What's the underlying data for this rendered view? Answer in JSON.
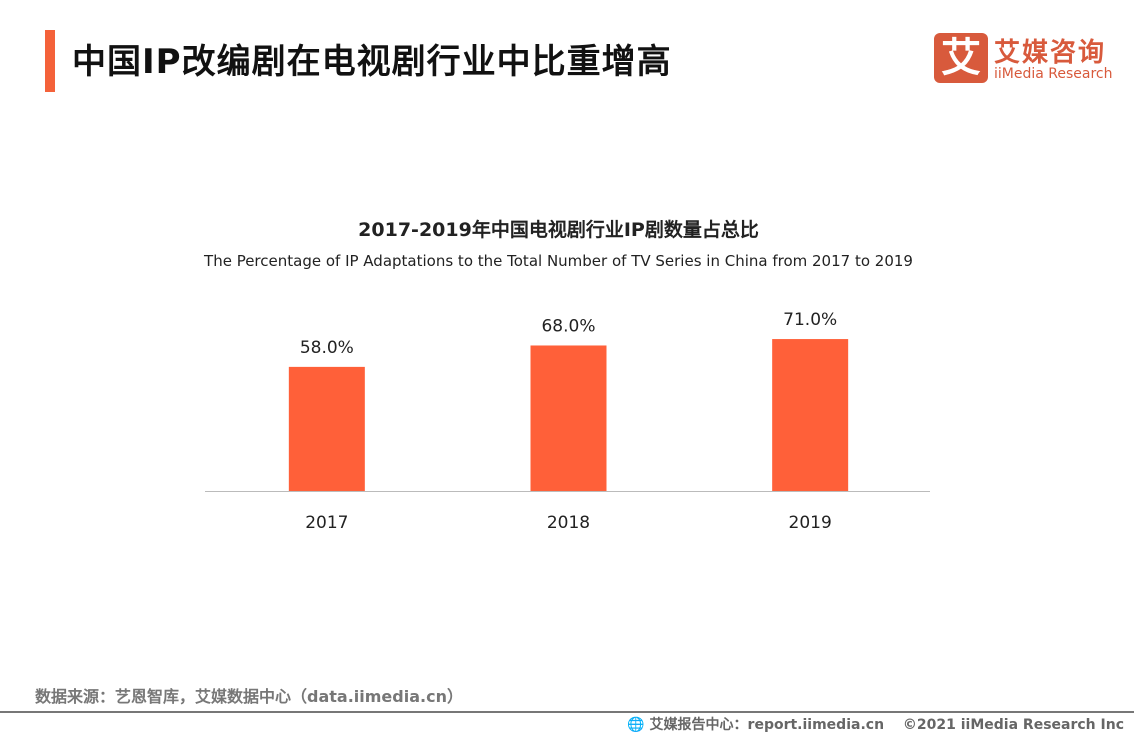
{
  "header": {
    "title": "中国IP改编剧在电视剧行业中比重增高",
    "accent_color": "#f4623a"
  },
  "logo": {
    "glyph": "艾",
    "cn": "艾媒咨询",
    "en": "iiMedia Research",
    "color": "#d85a3c"
  },
  "chart_data": {
    "type": "bar",
    "title": "2017-2019年中国电视剧行业IP剧数量占总比",
    "subtitle": "The Percentage of IP Adaptations to the Total Number of TV Series in China from 2017 to 2019",
    "categories": [
      "2017",
      "2018",
      "2019"
    ],
    "values": [
      58.0,
      68.0,
      71.0
    ],
    "labels": [
      "58.0%",
      "68.0%",
      "71.0%"
    ],
    "ylim": [
      0,
      100
    ],
    "grid": false,
    "bar_color": "#ff6039"
  },
  "footer": {
    "source": "数据来源：艺恩智库，艾媒数据中心（data.iimedia.cn）",
    "report": "艾媒报告中心：report.iimedia.cn",
    "copyright": "©2021  iiMedia Research  Inc"
  }
}
